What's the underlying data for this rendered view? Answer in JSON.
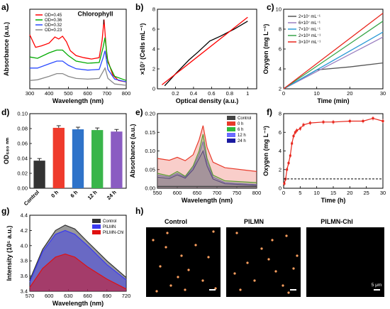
{
  "panels": {
    "a": "a)",
    "b": "b)",
    "c": "c)",
    "d": "d)",
    "e": "e)",
    "f": "f)",
    "g": "g)",
    "h": "h)"
  },
  "chart_data": [
    {
      "id": "a",
      "type": "line",
      "xlabel": "Wavelength (nm)",
      "ylabel": "Absorbance (a.u.)",
      "xlim": [
        300,
        800
      ],
      "xticks": [
        300,
        400,
        500,
        600,
        700,
        800
      ],
      "annotation": "Chlorophyll",
      "series": [
        {
          "name": "OD=0.45",
          "color": "#ff0000",
          "points": [
            [
              300,
              0.78
            ],
            [
              330,
              0.6
            ],
            [
              360,
              0.62
            ],
            [
              400,
              0.66
            ],
            [
              430,
              0.75
            ],
            [
              450,
              0.72
            ],
            [
              470,
              0.76
            ],
            [
              490,
              0.68
            ],
            [
              510,
              0.55
            ],
            [
              540,
              0.48
            ],
            [
              580,
              0.45
            ],
            [
              620,
              0.43
            ],
            [
              660,
              0.45
            ],
            [
              675,
              0.7
            ],
            [
              685,
              1.0
            ],
            [
              700,
              0.45
            ],
            [
              730,
              0.2
            ],
            [
              760,
              0.12
            ],
            [
              800,
              0.1
            ]
          ]
        },
        {
          "name": "OD=0.36",
          "color": "#00aa00",
          "points": [
            [
              300,
              0.46
            ],
            [
              340,
              0.44
            ],
            [
              400,
              0.52
            ],
            [
              440,
              0.56
            ],
            [
              470,
              0.56
            ],
            [
              500,
              0.48
            ],
            [
              540,
              0.4
            ],
            [
              600,
              0.37
            ],
            [
              660,
              0.38
            ],
            [
              680,
              0.6
            ],
            [
              690,
              0.74
            ],
            [
              705,
              0.38
            ],
            [
              740,
              0.18
            ],
            [
              800,
              0.12
            ]
          ]
        },
        {
          "name": "OD=0.32",
          "color": "#2b4bff",
          "points": [
            [
              300,
              0.3
            ],
            [
              340,
              0.3
            ],
            [
              400,
              0.36
            ],
            [
              440,
              0.4
            ],
            [
              470,
              0.4
            ],
            [
              500,
              0.34
            ],
            [
              540,
              0.29
            ],
            [
              600,
              0.27
            ],
            [
              660,
              0.28
            ],
            [
              680,
              0.45
            ],
            [
              690,
              0.55
            ],
            [
              705,
              0.28
            ],
            [
              740,
              0.14
            ],
            [
              800,
              0.1
            ]
          ]
        },
        {
          "name": "OD=0.23",
          "color": "#888888",
          "points": [
            [
              300,
              0.12
            ],
            [
              340,
              0.13
            ],
            [
              400,
              0.18
            ],
            [
              440,
              0.22
            ],
            [
              470,
              0.22
            ],
            [
              500,
              0.18
            ],
            [
              540,
              0.15
            ],
            [
              600,
              0.14
            ],
            [
              660,
              0.15
            ],
            [
              680,
              0.25
            ],
            [
              690,
              0.3
            ],
            [
              705,
              0.15
            ],
            [
              740,
              0.07
            ],
            [
              800,
              0.05
            ]
          ]
        }
      ]
    },
    {
      "id": "b",
      "type": "line",
      "xlabel": "Optical density (a.u.)",
      "ylabel": "×10⁷ (Cells mL⁻¹)",
      "xlim": [
        0.0,
        1.1
      ],
      "ylim": [
        0,
        8
      ],
      "xticks": [
        0.2,
        0.4,
        0.6,
        0.8,
        1.0
      ],
      "yticks": [
        0,
        2,
        4,
        6,
        8
      ],
      "series": [
        {
          "name": "",
          "color": "#000000",
          "points": [
            [
              0.08,
              0.3
            ],
            [
              0.2,
              1.5
            ],
            [
              0.35,
              2.9
            ],
            [
              0.45,
              3.7
            ],
            [
              0.58,
              4.8
            ],
            [
              0.7,
              5.3
            ],
            [
              0.85,
              6.0
            ],
            [
              1.0,
              6.8
            ]
          ]
        },
        {
          "name": "",
          "color": "#ff0000",
          "points": [
            [
              0.05,
              0.4
            ],
            [
              1.0,
              7.2
            ]
          ]
        }
      ]
    },
    {
      "id": "c",
      "type": "line",
      "xlabel": "Time (min)",
      "ylabel": "Oxygen (mg L⁻¹)",
      "xlim": [
        0,
        30
      ],
      "ylim": [
        2,
        10
      ],
      "xticks": [
        0,
        10,
        20,
        30
      ],
      "yticks": [
        2,
        4,
        6,
        8,
        10
      ],
      "series": [
        {
          "name": "2×10⁷ mL⁻¹",
          "color": "#555555",
          "points": [
            [
              0,
              2
            ],
            [
              10,
              3.9
            ],
            [
              20,
              4.2
            ],
            [
              30,
              4.6
            ]
          ]
        },
        {
          "name": "6×10⁷ mL⁻¹",
          "color": "#9a7fc0",
          "points": [
            [
              0,
              2
            ],
            [
              30,
              7.2
            ]
          ]
        },
        {
          "name": "7×10⁷ mL⁻¹",
          "color": "#2a9ad6",
          "points": [
            [
              0,
              2
            ],
            [
              30,
              7.7
            ]
          ]
        },
        {
          "name": "2×10⁸ mL⁻¹",
          "color": "#39a64a",
          "points": [
            [
              0,
              2
            ],
            [
              30,
              8.8
            ]
          ]
        },
        {
          "name": "3×10⁸ mL⁻¹",
          "color": "#e8261c",
          "points": [
            [
              0,
              2
            ],
            [
              30,
              9.6
            ]
          ]
        }
      ]
    },
    {
      "id": "d",
      "type": "bar",
      "ylabel": "OD₆₈₀ ₙₘ",
      "ylim": [
        0.0,
        0.1
      ],
      "yticks": [
        0.0,
        0.02,
        0.04,
        0.06,
        0.08,
        0.1
      ],
      "categories": [
        "Control",
        "0 h",
        "6 h",
        "12 h",
        "24 h"
      ],
      "values": [
        0.037,
        0.081,
        0.079,
        0.078,
        0.076
      ],
      "colors": [
        "#333333",
        "#ef3b2c",
        "#2f73c9",
        "#39b54a",
        "#8a5cc2"
      ]
    },
    {
      "id": "e",
      "type": "area",
      "xlabel": "Wavelength (nm)",
      "ylabel": "Absorbance (a.u.)",
      "xlim": [
        550,
        800
      ],
      "ylim": [
        0.0,
        0.2
      ],
      "xticks": [
        550,
        600,
        650,
        700,
        750,
        800
      ],
      "yticks": [
        0.0,
        0.05,
        0.1,
        0.15,
        0.2
      ],
      "series": [
        {
          "name": "Control",
          "color": "#444444",
          "points": [
            [
              550,
              0.005
            ],
            [
              800,
              0.005
            ]
          ]
        },
        {
          "name": "0 h",
          "color": "#e83a2a",
          "points": [
            [
              550,
              0.08
            ],
            [
              580,
              0.075
            ],
            [
              600,
              0.083
            ],
            [
              620,
              0.074
            ],
            [
              640,
              0.09
            ],
            [
              655,
              0.13
            ],
            [
              665,
              0.168
            ],
            [
              675,
              0.11
            ],
            [
              690,
              0.07
            ],
            [
              720,
              0.055
            ],
            [
              800,
              0.045
            ]
          ]
        },
        {
          "name": "6 h",
          "color": "#2fba3a",
          "points": [
            [
              550,
              0.04
            ],
            [
              580,
              0.033
            ],
            [
              600,
              0.045
            ],
            [
              620,
              0.032
            ],
            [
              640,
              0.06
            ],
            [
              655,
              0.1
            ],
            [
              665,
              0.145
            ],
            [
              675,
              0.08
            ],
            [
              690,
              0.035
            ],
            [
              720,
              0.02
            ],
            [
              800,
              0.015
            ]
          ]
        },
        {
          "name": "12 h",
          "color": "#6a6aff",
          "points": [
            [
              550,
              0.035
            ],
            [
              580,
              0.03
            ],
            [
              600,
              0.04
            ],
            [
              620,
              0.03
            ],
            [
              640,
              0.055
            ],
            [
              655,
              0.09
            ],
            [
              665,
              0.125
            ],
            [
              675,
              0.07
            ],
            [
              690,
              0.03
            ],
            [
              720,
              0.015
            ],
            [
              800,
              0.01
            ]
          ]
        },
        {
          "name": "24 h",
          "color": "#1a1aa0",
          "points": [
            [
              550,
              0.03
            ],
            [
              580,
              0.026
            ],
            [
              600,
              0.036
            ],
            [
              620,
              0.027
            ],
            [
              640,
              0.05
            ],
            [
              655,
              0.08
            ],
            [
              665,
              0.1
            ],
            [
              675,
              0.06
            ],
            [
              690,
              0.025
            ],
            [
              720,
              0.012
            ],
            [
              800,
              0.008
            ]
          ]
        }
      ]
    },
    {
      "id": "f",
      "type": "scatter",
      "xlabel": "Time (h)",
      "ylabel": "Oxygen (mg L⁻¹)",
      "xlim": [
        0,
        30
      ],
      "ylim": [
        0,
        8
      ],
      "xticks": [
        0,
        5,
        10,
        15,
        20,
        25,
        30
      ],
      "yticks": [
        0,
        2,
        4,
        6,
        8
      ],
      "series": [
        {
          "name": "",
          "color": "#e8261c",
          "points": [
            [
              0.2,
              0.5
            ],
            [
              0.6,
              1.0
            ],
            [
              1.0,
              2.0
            ],
            [
              1.5,
              2.7
            ],
            [
              2.0,
              3.5
            ],
            [
              2.5,
              4.8
            ],
            [
              3.0,
              5.6
            ],
            [
              3.5,
              6.0
            ],
            [
              4.0,
              6.2
            ],
            [
              5.0,
              6.4
            ],
            [
              6.0,
              6.8
            ],
            [
              8.0,
              7.0
            ],
            [
              12.0,
              7.1
            ],
            [
              15.0,
              7.1
            ],
            [
              20.0,
              7.2
            ],
            [
              24.0,
              7.2
            ],
            [
              27.0,
              7.5
            ],
            [
              30.0,
              7.2
            ]
          ]
        },
        {
          "name": "",
          "color": "#000000",
          "points": [
            [
              0,
              1.0
            ],
            [
              30,
              1.0
            ]
          ]
        }
      ]
    },
    {
      "id": "g",
      "type": "area",
      "xlabel": "Wavelength (nm)",
      "ylabel": "Intensity (10⁵ a.u.)",
      "xlim": [
        570,
        720
      ],
      "ylim": [
        3.4,
        4.4
      ],
      "xticks": [
        570,
        600,
        630,
        660,
        690,
        720
      ],
      "yticks": [
        3.4,
        3.6,
        3.8,
        4.0,
        4.2,
        4.4
      ],
      "series": [
        {
          "name": "Control",
          "color": "#333333",
          "points": [
            [
              570,
              3.55
            ],
            [
              590,
              3.95
            ],
            [
              610,
              4.2
            ],
            [
              625,
              4.27
            ],
            [
              640,
              4.22
            ],
            [
              660,
              4.05
            ],
            [
              690,
              3.8
            ],
            [
              720,
              3.58
            ]
          ]
        },
        {
          "name": "PILMN",
          "color": "#3a3af0",
          "points": [
            [
              570,
              3.52
            ],
            [
              590,
              3.92
            ],
            [
              610,
              4.15
            ],
            [
              625,
              4.2
            ],
            [
              640,
              4.15
            ],
            [
              660,
              4.0
            ],
            [
              690,
              3.75
            ],
            [
              720,
              3.55
            ]
          ]
        },
        {
          "name": "PILMN-Chl",
          "color": "#e01010",
          "points": [
            [
              570,
              3.45
            ],
            [
              590,
              3.7
            ],
            [
              610,
              3.85
            ],
            [
              625,
              3.89
            ],
            [
              640,
              3.85
            ],
            [
              660,
              3.72
            ],
            [
              690,
              3.56
            ],
            [
              720,
              3.43
            ]
          ]
        }
      ]
    }
  ],
  "images": {
    "titles": [
      "Control",
      "PILMN",
      "PILMN-Chl"
    ],
    "scale_label": "5 μm"
  }
}
